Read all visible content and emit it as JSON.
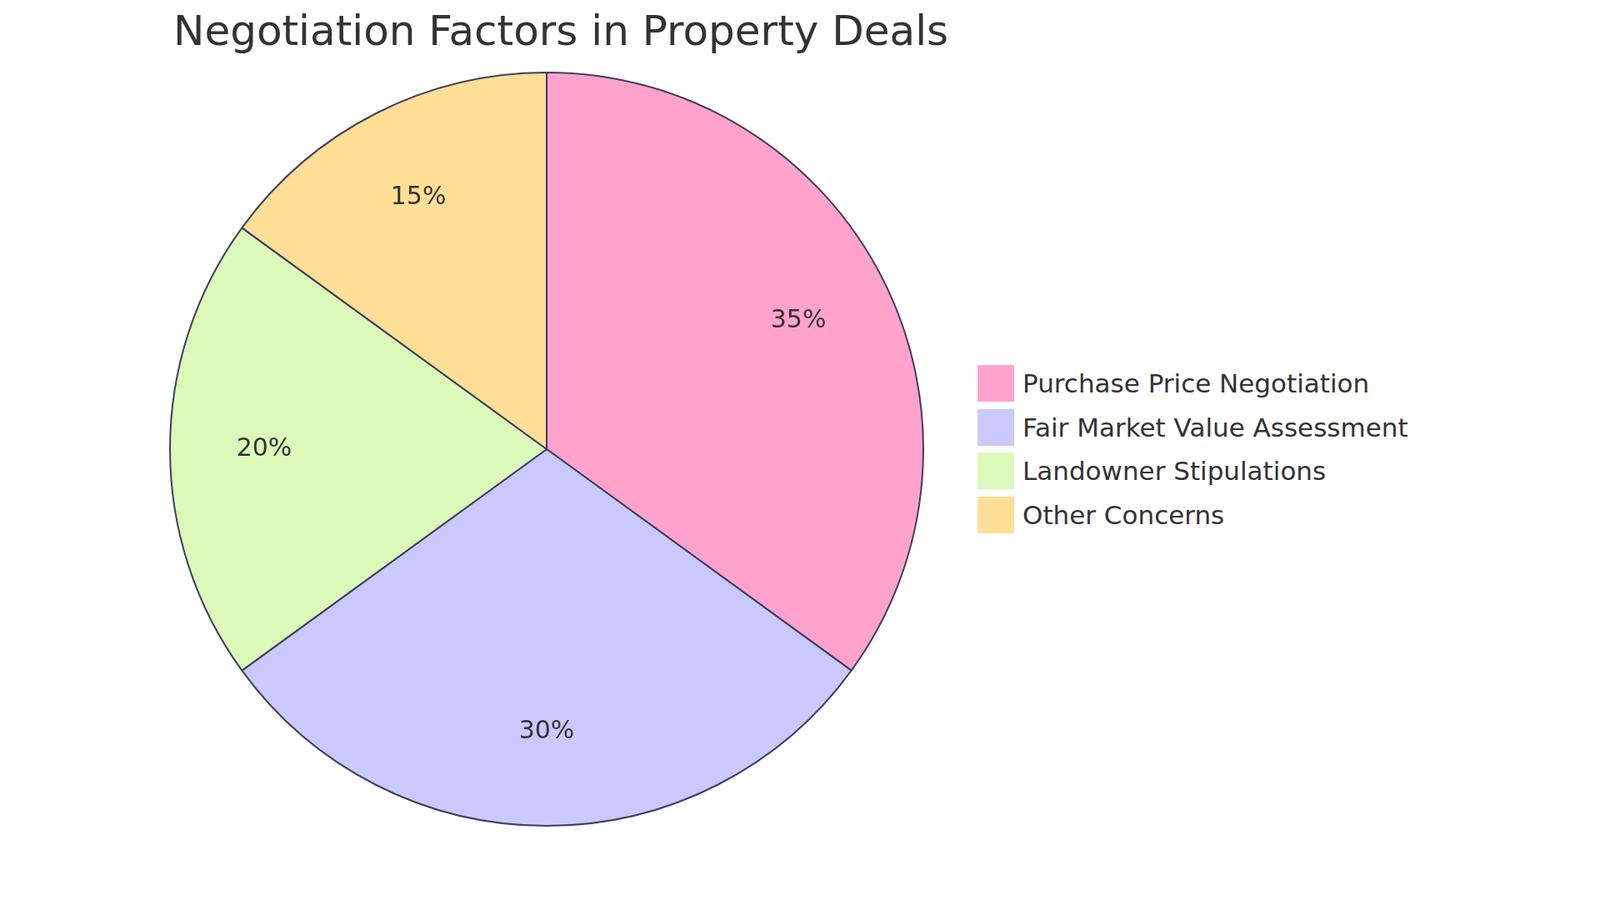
{
  "chart_data": {
    "type": "pie",
    "title": "Negotiation Factors in Property Deals",
    "categories": [
      "Purchase Price Negotiation",
      "Fair Market Value Assessment",
      "Landowner Stipulations",
      "Other Concerns"
    ],
    "values": [
      35,
      30,
      20,
      15
    ],
    "value_labels": [
      "35%",
      "30%",
      "20%",
      "15%"
    ],
    "colors": [
      "#ffa3cd",
      "#c9c9ff",
      "#dbfab9",
      "#ffde95"
    ],
    "data_labels": true,
    "legend": "right"
  }
}
